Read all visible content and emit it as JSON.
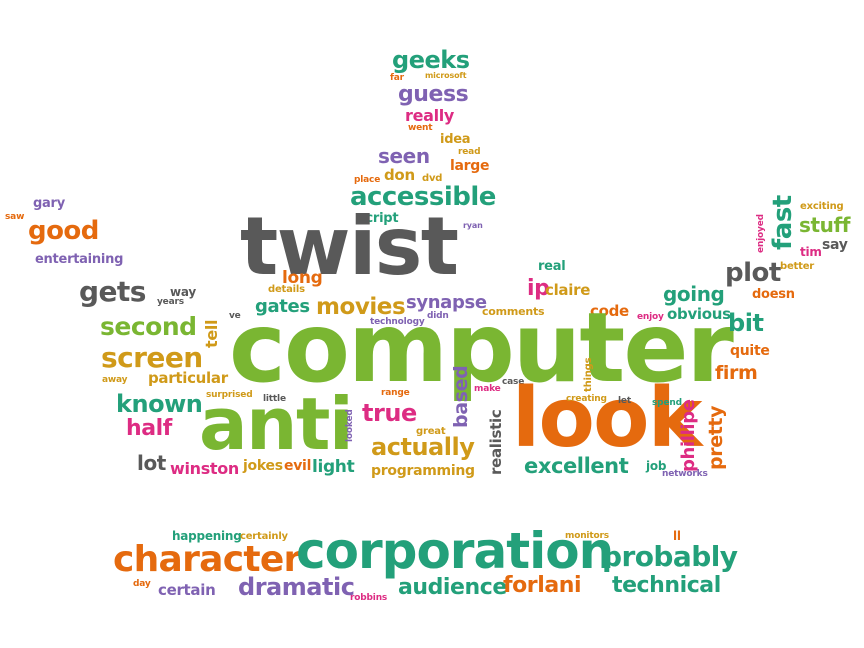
{
  "colors": {
    "green": "#7ab632",
    "orange": "#e56a0e",
    "teal": "#23a07a",
    "gray": "#595959",
    "purple": "#7f62b2",
    "pink": "#dd2c83",
    "gold": "#d09a19"
  },
  "words": [
    {
      "id": "computer",
      "text": "computer",
      "color": "green"
    },
    {
      "id": "twist",
      "text": "twist",
      "color": "gray"
    },
    {
      "id": "look",
      "text": "look",
      "color": "orange"
    },
    {
      "id": "anti",
      "text": "anti",
      "color": "green"
    },
    {
      "id": "corporation",
      "text": "corporation",
      "color": "teal"
    },
    {
      "id": "character",
      "text": "character",
      "color": "orange"
    },
    {
      "id": "probably",
      "text": "probably",
      "color": "teal"
    },
    {
      "id": "accessible",
      "text": "accessible",
      "color": "teal"
    },
    {
      "id": "dramatic",
      "text": "dramatic",
      "color": "purple"
    },
    {
      "id": "audience",
      "text": "audience",
      "color": "teal"
    },
    {
      "id": "forlani",
      "text": "forlani",
      "color": "orange"
    },
    {
      "id": "technical",
      "text": "technical",
      "color": "teal"
    },
    {
      "id": "certain",
      "text": "certain",
      "color": "purple"
    },
    {
      "id": "happening",
      "text": "happening",
      "color": "teal"
    },
    {
      "id": "certainly",
      "text": "certainly",
      "color": "gold"
    },
    {
      "id": "day",
      "text": "day",
      "color": "orange"
    },
    {
      "id": "robbins",
      "text": "robbins",
      "color": "pink"
    },
    {
      "id": "monitors",
      "text": "monitors",
      "color": "gold"
    },
    {
      "id": "ll",
      "text": "ll",
      "color": "orange"
    },
    {
      "id": "geeks",
      "text": "geeks",
      "color": "teal"
    },
    {
      "id": "far",
      "text": "far",
      "color": "orange"
    },
    {
      "id": "microsoft",
      "text": "microsoft",
      "color": "gold"
    },
    {
      "id": "guess",
      "text": "guess",
      "color": "purple"
    },
    {
      "id": "really",
      "text": "really",
      "color": "pink"
    },
    {
      "id": "went",
      "text": "went",
      "color": "orange"
    },
    {
      "id": "idea",
      "text": "idea",
      "color": "gold"
    },
    {
      "id": "read",
      "text": "read",
      "color": "gold"
    },
    {
      "id": "seen",
      "text": "seen",
      "color": "purple"
    },
    {
      "id": "large",
      "text": "large",
      "color": "orange"
    },
    {
      "id": "place",
      "text": "place",
      "color": "orange"
    },
    {
      "id": "don",
      "text": "don",
      "color": "gold"
    },
    {
      "id": "dvd",
      "text": "dvd",
      "color": "gold"
    },
    {
      "id": "script",
      "text": "script",
      "color": "teal"
    },
    {
      "id": "ryan",
      "text": "ryan",
      "color": "purple"
    },
    {
      "id": "gary",
      "text": "gary",
      "color": "purple"
    },
    {
      "id": "saw",
      "text": "saw",
      "color": "orange"
    },
    {
      "id": "good",
      "text": "good",
      "color": "orange"
    },
    {
      "id": "entertaining",
      "text": "entertaining",
      "color": "purple"
    },
    {
      "id": "gets",
      "text": "gets",
      "color": "gray"
    },
    {
      "id": "way",
      "text": "way",
      "color": "gray"
    },
    {
      "id": "years",
      "text": "years",
      "color": "gray"
    },
    {
      "id": "long",
      "text": "long",
      "color": "orange"
    },
    {
      "id": "details",
      "text": "details",
      "color": "gold"
    },
    {
      "id": "gates",
      "text": "gates",
      "color": "teal"
    },
    {
      "id": "movies",
      "text": "movies",
      "color": "gold"
    },
    {
      "id": "synapse",
      "text": "synapse",
      "color": "purple"
    },
    {
      "id": "comments",
      "text": "comments",
      "color": "gold"
    },
    {
      "id": "ip",
      "text": "ip",
      "color": "pink"
    },
    {
      "id": "claire",
      "text": "claire",
      "color": "gold"
    },
    {
      "id": "real",
      "text": "real",
      "color": "teal"
    },
    {
      "id": "second",
      "text": "second",
      "color": "green"
    },
    {
      "id": "tell",
      "text": "tell",
      "color": "gold"
    },
    {
      "id": "ve",
      "text": "ve",
      "color": "gray"
    },
    {
      "id": "technology",
      "text": "technology",
      "color": "purple"
    },
    {
      "id": "didn",
      "text": "didn",
      "color": "purple"
    },
    {
      "id": "code",
      "text": "code",
      "color": "orange"
    },
    {
      "id": "enjoy",
      "text": "enjoy",
      "color": "pink"
    },
    {
      "id": "obvious",
      "text": "obvious",
      "color": "teal"
    },
    {
      "id": "going",
      "text": "going",
      "color": "teal"
    },
    {
      "id": "plot",
      "text": "plot",
      "color": "gray"
    },
    {
      "id": "doesn",
      "text": "doesn",
      "color": "orange"
    },
    {
      "id": "fast",
      "text": "fast",
      "color": "teal"
    },
    {
      "id": "stuff",
      "text": "stuff",
      "color": "green"
    },
    {
      "id": "exciting",
      "text": "exciting",
      "color": "gold"
    },
    {
      "id": "enjoyed",
      "text": "enjoyed",
      "color": "pink"
    },
    {
      "id": "tim",
      "text": "tim",
      "color": "pink"
    },
    {
      "id": "say",
      "text": "say",
      "color": "gray"
    },
    {
      "id": "better",
      "text": "better",
      "color": "gold"
    },
    {
      "id": "bit",
      "text": "bit",
      "color": "teal"
    },
    {
      "id": "quite",
      "text": "quite",
      "color": "orange"
    },
    {
      "id": "firm",
      "text": "firm",
      "color": "orange"
    },
    {
      "id": "screen",
      "text": "screen",
      "color": "gold"
    },
    {
      "id": "particular",
      "text": "particular",
      "color": "gold"
    },
    {
      "id": "away",
      "text": "away",
      "color": "gold"
    },
    {
      "id": "known",
      "text": "known",
      "color": "teal"
    },
    {
      "id": "surprised",
      "text": "surprised",
      "color": "gold"
    },
    {
      "id": "little",
      "text": "little",
      "color": "gray"
    },
    {
      "id": "range",
      "text": "range",
      "color": "orange"
    },
    {
      "id": "make",
      "text": "make",
      "color": "pink"
    },
    {
      "id": "case",
      "text": "case",
      "color": "gray"
    },
    {
      "id": "things",
      "text": "things",
      "color": "gold"
    },
    {
      "id": "based",
      "text": "based",
      "color": "purple"
    },
    {
      "id": "half",
      "text": "half",
      "color": "pink"
    },
    {
      "id": "looked",
      "text": "looked",
      "color": "purple"
    },
    {
      "id": "true",
      "text": "true",
      "color": "pink"
    },
    {
      "id": "great",
      "text": "great",
      "color": "gold"
    },
    {
      "id": "actually",
      "text": "actually",
      "color": "gold"
    },
    {
      "id": "realistic",
      "text": "realistic",
      "color": "gray"
    },
    {
      "id": "creating",
      "text": "creating",
      "color": "gold"
    },
    {
      "id": "let",
      "text": "let",
      "color": "gray"
    },
    {
      "id": "spend",
      "text": "spend",
      "color": "teal"
    },
    {
      "id": "pretty",
      "text": "pretty",
      "color": "orange"
    },
    {
      "id": "phillipe",
      "text": "phillipe",
      "color": "pink"
    },
    {
      "id": "lot",
      "text": "lot",
      "color": "gray"
    },
    {
      "id": "winston",
      "text": "winston",
      "color": "pink"
    },
    {
      "id": "jokes",
      "text": "jokes",
      "color": "gold"
    },
    {
      "id": "evil",
      "text": "evil",
      "color": "orange"
    },
    {
      "id": "light",
      "text": "light",
      "color": "teal"
    },
    {
      "id": "programming",
      "text": "programming",
      "color": "gold"
    },
    {
      "id": "excellent",
      "text": "excellent",
      "color": "teal"
    },
    {
      "id": "job",
      "text": "job",
      "color": "teal"
    },
    {
      "id": "networks",
      "text": "networks",
      "color": "purple"
    }
  ]
}
